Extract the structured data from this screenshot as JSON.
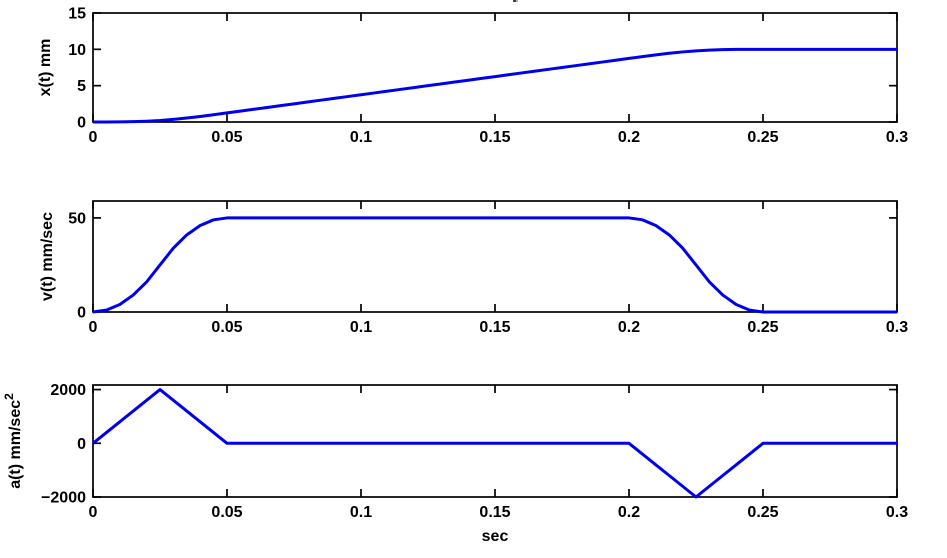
{
  "figure": {
    "background": "#ffffff",
    "line_color": "#0000EE",
    "axis_color": "#000000",
    "text_color": "#000000",
    "clipped_title_note": "partial glyph of a title clipped at top edge"
  },
  "chart_data": [
    {
      "id": "position",
      "type": "line",
      "title": "",
      "ylabel": "x(t) mm",
      "ylabel_sup": "",
      "xlabel": "",
      "xlim": [
        0,
        0.3
      ],
      "ylim": [
        0,
        15
      ],
      "ytick_values": [
        0,
        5,
        10,
        15
      ],
      "ytick_labels": [
        "0",
        "5",
        "10",
        "15"
      ],
      "xtick_values": [
        0,
        0.05,
        0.1,
        0.15,
        0.2,
        0.25,
        0.3
      ],
      "xtick_labels": [
        "0",
        "0.05",
        "0.1",
        "0.15",
        "0.2",
        "0.25",
        "0.3"
      ],
      "grid": false,
      "legend": null,
      "x": [
        0,
        0.005,
        0.01,
        0.015,
        0.02,
        0.025,
        0.03,
        0.035,
        0.04,
        0.045,
        0.05,
        0.055,
        0.06,
        0.065,
        0.07,
        0.075,
        0.08,
        0.085,
        0.09,
        0.095,
        0.1,
        0.105,
        0.11,
        0.115,
        0.12,
        0.125,
        0.13,
        0.135,
        0.14,
        0.145,
        0.15,
        0.155,
        0.16,
        0.165,
        0.17,
        0.175,
        0.18,
        0.185,
        0.19,
        0.195,
        0.2,
        0.205,
        0.21,
        0.215,
        0.22,
        0.225,
        0.23,
        0.235,
        0.24,
        0.245,
        0.25,
        0.255,
        0.26,
        0.265,
        0.27,
        0.275,
        0.28,
        0.285,
        0.29,
        0.295,
        0.3
      ],
      "series": [
        {
          "name": "x(t)",
          "values": [
            0,
            0.002,
            0.013,
            0.045,
            0.107,
            0.208,
            0.357,
            0.545,
            0.763,
            1.002,
            1.25,
            1.5,
            1.75,
            2.0,
            2.25,
            2.5,
            2.75,
            3.0,
            3.25,
            3.5,
            3.75,
            4.0,
            4.25,
            4.5,
            4.75,
            5.0,
            5.25,
            5.5,
            5.75,
            6.0,
            6.25,
            6.5,
            6.75,
            7.0,
            7.25,
            7.5,
            7.75,
            8.0,
            8.25,
            8.5,
            8.75,
            8.998,
            9.237,
            9.455,
            9.643,
            9.792,
            9.893,
            9.955,
            9.987,
            9.998,
            10,
            10,
            10,
            10,
            10,
            10,
            10,
            10,
            10,
            10,
            10
          ]
        }
      ]
    },
    {
      "id": "velocity",
      "type": "line",
      "title": "",
      "ylabel": "v(t) mm/sec",
      "ylabel_sup": "",
      "xlabel": "",
      "xlim": [
        0,
        0.3
      ],
      "ylim": [
        0,
        59
      ],
      "ytick_values": [
        0,
        50
      ],
      "ytick_labels": [
        "0",
        "50"
      ],
      "xtick_values": [
        0,
        0.05,
        0.1,
        0.15,
        0.2,
        0.25,
        0.3
      ],
      "xtick_labels": [
        "0",
        "0.05",
        "0.1",
        "0.15",
        "0.2",
        "0.25",
        "0.3"
      ],
      "grid": false,
      "legend": null,
      "x": [
        0,
        0.005,
        0.01,
        0.015,
        0.02,
        0.025,
        0.03,
        0.035,
        0.04,
        0.045,
        0.05,
        0.055,
        0.06,
        0.065,
        0.07,
        0.075,
        0.08,
        0.085,
        0.09,
        0.095,
        0.1,
        0.105,
        0.11,
        0.115,
        0.12,
        0.125,
        0.13,
        0.135,
        0.14,
        0.145,
        0.15,
        0.155,
        0.16,
        0.165,
        0.17,
        0.175,
        0.18,
        0.185,
        0.19,
        0.195,
        0.2,
        0.205,
        0.21,
        0.215,
        0.22,
        0.225,
        0.23,
        0.235,
        0.24,
        0.245,
        0.25,
        0.255,
        0.26,
        0.265,
        0.27,
        0.275,
        0.28,
        0.285,
        0.29,
        0.295,
        0.3
      ],
      "series": [
        {
          "name": "v(t)",
          "values": [
            0,
            1,
            4,
            9,
            16,
            25,
            34,
            41,
            46,
            49,
            50,
            50,
            50,
            50,
            50,
            50,
            50,
            50,
            50,
            50,
            50,
            50,
            50,
            50,
            50,
            50,
            50,
            50,
            50,
            50,
            50,
            50,
            50,
            50,
            50,
            50,
            50,
            50,
            50,
            50,
            50,
            49,
            46,
            41,
            34,
            25,
            16,
            9,
            4,
            1,
            0,
            0,
            0,
            0,
            0,
            0,
            0,
            0,
            0,
            0,
            0
          ]
        }
      ]
    },
    {
      "id": "acceleration",
      "type": "line",
      "title": "",
      "ylabel": "a(t) mm/sec",
      "ylabel_sup": "2",
      "xlabel": "sec",
      "xlim": [
        0,
        0.3
      ],
      "ylim": [
        -2000,
        2170
      ],
      "ytick_values": [
        -2000,
        0,
        2000
      ],
      "ytick_labels": [
        "−2000",
        "0",
        "2000"
      ],
      "xtick_values": [
        0,
        0.05,
        0.1,
        0.15,
        0.2,
        0.25,
        0.3
      ],
      "xtick_labels": [
        "0",
        "0.05",
        "0.1",
        "0.15",
        "0.2",
        "0.25",
        "0.3"
      ],
      "grid": false,
      "legend": null,
      "x": [
        0,
        0.005,
        0.01,
        0.015,
        0.02,
        0.025,
        0.03,
        0.035,
        0.04,
        0.045,
        0.05,
        0.055,
        0.06,
        0.065,
        0.07,
        0.075,
        0.08,
        0.085,
        0.09,
        0.095,
        0.1,
        0.105,
        0.11,
        0.115,
        0.12,
        0.125,
        0.13,
        0.135,
        0.14,
        0.145,
        0.15,
        0.155,
        0.16,
        0.165,
        0.17,
        0.175,
        0.18,
        0.185,
        0.19,
        0.195,
        0.2,
        0.205,
        0.21,
        0.215,
        0.22,
        0.225,
        0.23,
        0.235,
        0.24,
        0.245,
        0.25,
        0.255,
        0.26,
        0.265,
        0.27,
        0.275,
        0.28,
        0.285,
        0.29,
        0.295,
        0.3
      ],
      "series": [
        {
          "name": "a(t)",
          "values": [
            0,
            400,
            800,
            1200,
            1600,
            2000,
            1600,
            1200,
            800,
            400,
            0,
            0,
            0,
            0,
            0,
            0,
            0,
            0,
            0,
            0,
            0,
            0,
            0,
            0,
            0,
            0,
            0,
            0,
            0,
            0,
            0,
            0,
            0,
            0,
            0,
            0,
            0,
            0,
            0,
            0,
            0,
            -400,
            -800,
            -1200,
            -1600,
            -2000,
            -1600,
            -1200,
            -800,
            -400,
            0,
            0,
            0,
            0,
            0,
            0,
            0,
            0,
            0,
            0,
            0
          ]
        }
      ]
    }
  ]
}
